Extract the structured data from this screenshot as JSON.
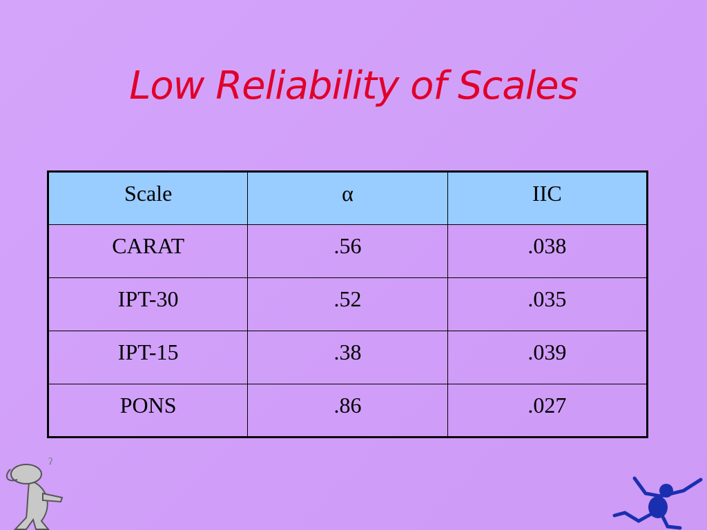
{
  "header": {
    "title": "Low Reliability of Scales"
  },
  "table": {
    "columns": [
      "Scale",
      "α",
      "IIC"
    ],
    "rows": [
      [
        "CARAT",
        ".56",
        ".038"
      ],
      [
        "IPT-30",
        ".52",
        ".035"
      ],
      [
        "IPT-15",
        ".38",
        ".039"
      ],
      [
        "PONS",
        ".86",
        ".027"
      ]
    ]
  }
}
